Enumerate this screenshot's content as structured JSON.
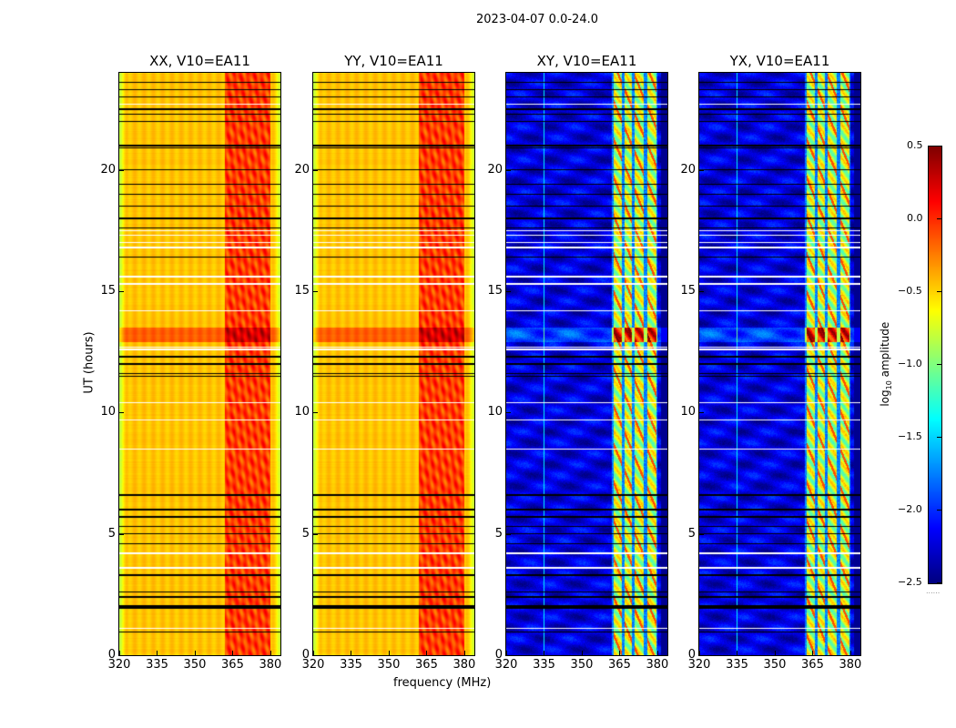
{
  "chart_data": {
    "type": "heatmap",
    "title": "2023-04-07 0.0-24.0",
    "xlabel": "frequency (MHz)",
    "ylabel": "UT (hours)",
    "xlim": [
      320,
      384
    ],
    "ylim": [
      0,
      24
    ],
    "xticks": [
      "320",
      "335",
      "350",
      "365",
      "380"
    ],
    "yticks": [
      "0",
      "5",
      "10",
      "15",
      "20"
    ],
    "panels": [
      {
        "title": "XX, V10=EA11",
        "pol": "parallel"
      },
      {
        "title": "YY, V10=EA11",
        "pol": "parallel"
      },
      {
        "title": "XY, V10=EA11",
        "pol": "cross"
      },
      {
        "title": "YX, V10=EA11",
        "pol": "cross"
      }
    ],
    "features": {
      "rfi_band_mhz": [
        362,
        380
      ],
      "rfi_subbands_mhz": [
        [
          362.5,
          366
        ],
        [
          367,
          370
        ],
        [
          371,
          374.5
        ],
        [
          376,
          379.5
        ]
      ],
      "cross_pol_spur_mhz": 335,
      "bright_interval_ut": [
        12.9,
        13.5
      ],
      "flagged_black_ut": [
        0.95,
        1.95,
        2.0,
        2.05,
        2.4,
        2.6,
        3.3,
        4.6,
        5.0,
        5.3,
        5.7,
        6.0,
        6.6,
        11.5,
        11.6,
        12.0,
        12.3,
        16.4,
        17.6,
        18.0,
        18.5,
        19.0,
        19.4,
        20.0,
        20.9,
        21.0,
        22.0,
        22.3,
        22.5,
        23.0,
        23.3,
        23.6
      ],
      "gap_white_ut": [
        1.1,
        3.6,
        4.2,
        8.5,
        9.7,
        10.4,
        12.6,
        12.7,
        14.2,
        15.3,
        15.6,
        16.8,
        17.0,
        17.3,
        17.5,
        22.7
      ],
      "parallel_base_log10": -0.45,
      "parallel_band_log10": -0.05,
      "cross_base_log10": -2.3,
      "cross_band_log10": -0.9
    },
    "colorbar": {
      "label": "log10 amplitude",
      "label_main": "log",
      "label_sub": "10",
      "label_rest": " amplitude",
      "range": [
        -2.5,
        0.5
      ],
      "ticks": [
        "0.5",
        "0.0",
        "−0.5",
        "−1.0",
        "−1.5",
        "−2.0",
        "−2.5"
      ],
      "tick_values": [
        0.5,
        0.0,
        -0.5,
        -1.0,
        -1.5,
        -2.0,
        -2.5
      ],
      "colormap": "jet"
    }
  }
}
